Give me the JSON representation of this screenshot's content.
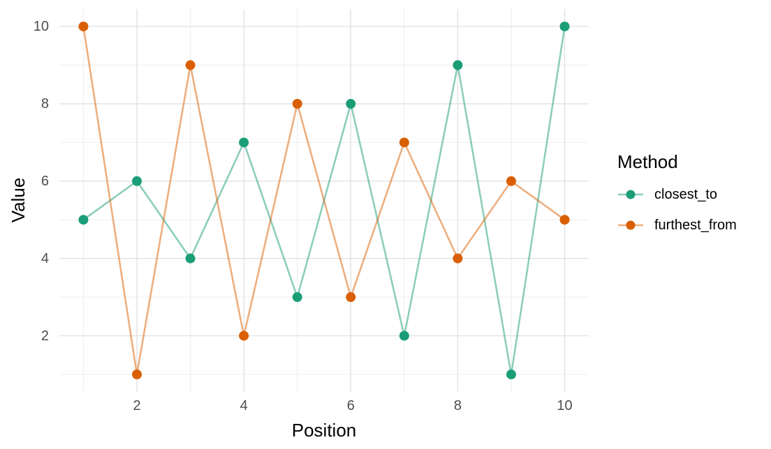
{
  "chart_data": {
    "type": "line",
    "title": "",
    "xlabel": "Position",
    "ylabel": "Value",
    "legend_title": "Method",
    "legend_position": "right",
    "grid": true,
    "x": [
      1,
      2,
      3,
      4,
      5,
      6,
      7,
      8,
      9,
      10
    ],
    "series": [
      {
        "name": "closest_to",
        "color": "#1b9e77",
        "values": [
          5,
          6,
          4,
          7,
          3,
          8,
          2,
          9,
          1,
          10
        ]
      },
      {
        "name": "furthest_from",
        "color": "#d95f02",
        "values": [
          10,
          1,
          9,
          2,
          8,
          3,
          7,
          4,
          6,
          5
        ]
      }
    ],
    "x_ticks": [
      2,
      4,
      6,
      8,
      10
    ],
    "y_ticks": [
      2,
      4,
      6,
      8,
      10
    ],
    "x_minor_ticks": [
      1,
      3,
      5,
      7,
      9
    ],
    "y_minor_ticks": [
      1,
      3,
      5,
      7,
      9
    ],
    "xlim": [
      0.55,
      10.45
    ],
    "ylim": [
      0.55,
      10.45
    ],
    "line_opacity": 0.5,
    "colors": {
      "background": "#ffffff",
      "grid_major": "#e2e2e2",
      "grid_minor": "#f0f0f0",
      "tick_text": "#4d4d4d",
      "title_text": "#000000"
    }
  }
}
